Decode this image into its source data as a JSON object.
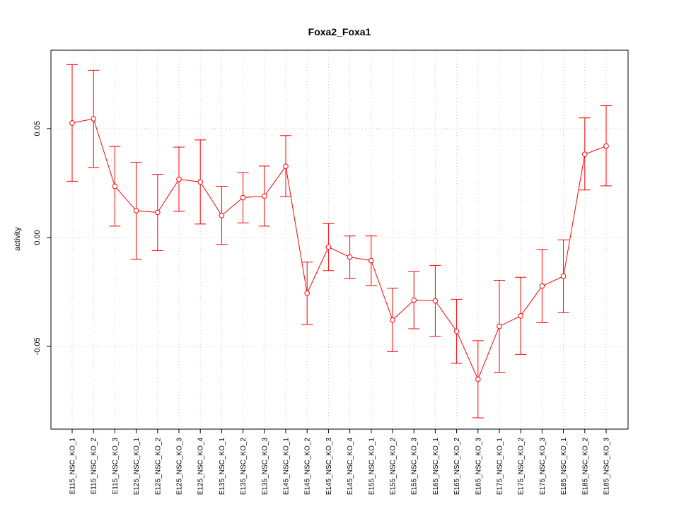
{
  "chart_data": {
    "type": "line",
    "title": "Foxa2_Foxa1",
    "xlabel": "",
    "ylabel": "activity",
    "ylim": [
      -0.088,
      0.086
    ],
    "yticks": [
      -0.05,
      0.0,
      0.05
    ],
    "ytick_labels": [
      "-0.05",
      "0.00",
      "0.05"
    ],
    "grid": true,
    "legend": "none",
    "color": "#ff0000",
    "categories": [
      "E115_NSC_KO_1",
      "E115_NSC_KO_2",
      "E115_NSC_KO_3",
      "E125_NSC_KO_1",
      "E125_NSC_KO_2",
      "E125_NSC_KO_3",
      "E125_NSC_KO_4",
      "E135_NSC_KO_1",
      "E135_NSC_KO_2",
      "E135_NSC_KO_3",
      "E145_NSC_KO_1",
      "E145_NSC_KO_2",
      "E145_NSC_KO_3",
      "E145_NSC_KO_4",
      "E155_NSC_KO_1",
      "E155_NSC_KO_2",
      "E155_NSC_KO_3",
      "E165_NSC_KO_1",
      "E165_NSC_KO_2",
      "E165_NSC_KO_3",
      "E175_NSC_KO_1",
      "E175_NSC_KO_2",
      "E175_NSC_KO_3",
      "E185_NSC_KO_1",
      "E185_NSC_KO_2",
      "E185_NSC_KO_3"
    ],
    "values": [
      0.0526,
      0.0545,
      0.0235,
      0.0123,
      0.0115,
      0.0267,
      0.0255,
      0.0101,
      0.0183,
      0.019,
      0.0327,
      -0.0256,
      -0.0044,
      -0.009,
      -0.0106,
      -0.0379,
      -0.0288,
      -0.0291,
      -0.0431,
      -0.0651,
      -0.0408,
      -0.036,
      -0.0223,
      -0.0178,
      0.0382,
      0.042
    ],
    "err_upper": [
      0.0794,
      0.0768,
      0.0418,
      0.0345,
      0.029,
      0.0415,
      0.0448,
      0.0235,
      0.0298,
      0.0328,
      0.0468,
      -0.0113,
      0.0064,
      0.0007,
      0.0007,
      -0.0233,
      -0.0157,
      -0.0128,
      -0.0284,
      -0.0474,
      -0.0197,
      -0.0183,
      -0.0055,
      -0.0011,
      0.0549,
      0.0605
    ],
    "err_lower": [
      0.0258,
      0.0322,
      0.0052,
      -0.01,
      -0.006,
      0.012,
      0.0062,
      -0.0032,
      0.0067,
      0.0052,
      0.0188,
      -0.04,
      -0.0152,
      -0.0187,
      -0.022,
      -0.0524,
      -0.0419,
      -0.0454,
      -0.0578,
      -0.0828,
      -0.0619,
      -0.0537,
      -0.0391,
      -0.0345,
      0.0218,
      0.0237
    ]
  }
}
